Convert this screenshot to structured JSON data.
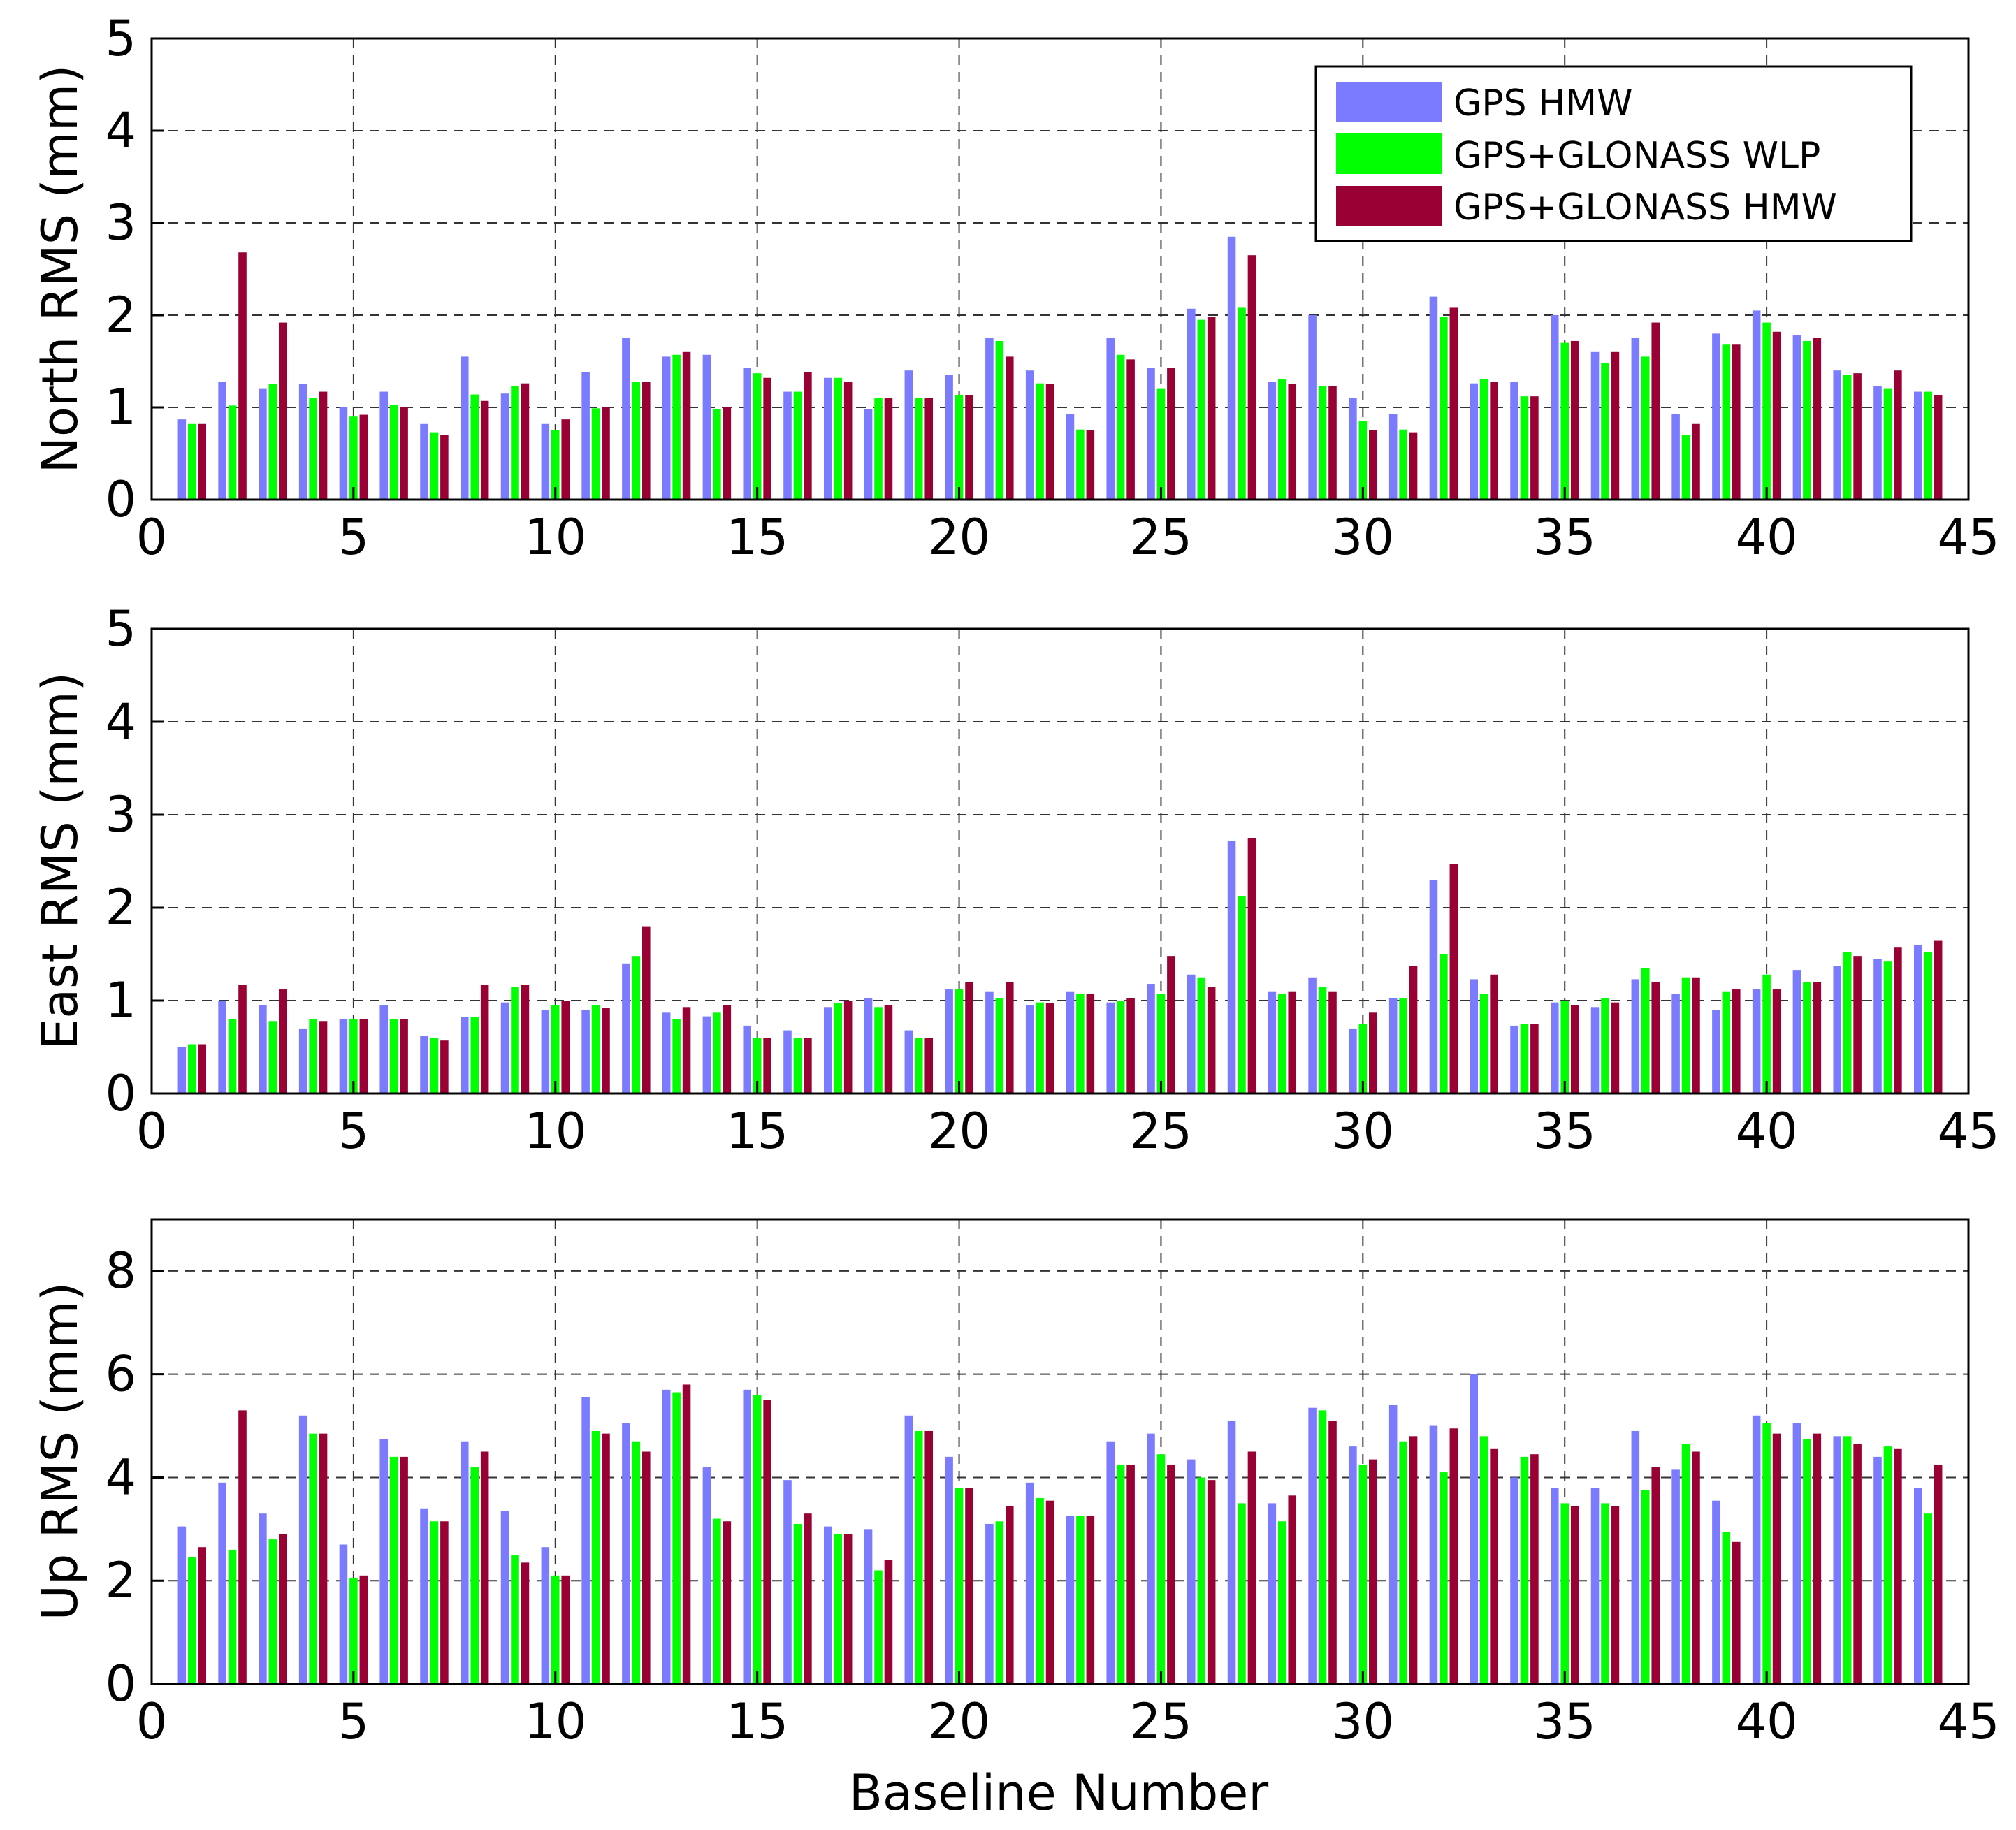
{
  "colors": {
    "gps_hmw": "#7b7bff",
    "gps_glonass_wlp": "#00ff00",
    "gps_glonass_hmw": "#990033",
    "grid": "#333333",
    "axes": "#000000"
  },
  "legend": {
    "items": [
      "GPS HMW",
      "GPS+GLONASS WLP",
      "GPS+GLONASS HMW"
    ]
  },
  "chart_data": [
    {
      "type": "bar",
      "ylabel": "North RMS (mm)",
      "xlabel": "",
      "xlim": [
        0,
        45
      ],
      "ylim": [
        0,
        5
      ],
      "xticks": [
        0,
        5,
        10,
        15,
        20,
        25,
        30,
        35,
        40,
        45
      ],
      "yticks": [
        0,
        1,
        2,
        3,
        4,
        5
      ],
      "grid": true,
      "legend": "top-right",
      "x": [
        1,
        2,
        3,
        4,
        5,
        6,
        7,
        8,
        9,
        10,
        11,
        12,
        13,
        14,
        15,
        16,
        17,
        18,
        19,
        20,
        21,
        22,
        23,
        24,
        25,
        26,
        27,
        28,
        29,
        30,
        31,
        32,
        33,
        34,
        35,
        36,
        37,
        38,
        39,
        40,
        41,
        42,
        43,
        44
      ],
      "series": [
        {
          "name": "GPS HMW",
          "values": [
            0.87,
            1.28,
            1.2,
            1.25,
            1.0,
            1.17,
            0.82,
            1.55,
            1.15,
            0.82,
            1.38,
            1.75,
            1.55,
            1.57,
            1.43,
            1.17,
            1.32,
            0.98,
            1.4,
            1.35,
            1.75,
            1.4,
            0.93,
            1.75,
            1.43,
            2.07,
            2.85,
            1.28,
            2.0,
            1.1,
            0.93,
            2.2,
            1.26,
            1.28,
            2.0,
            1.6,
            1.75,
            0.93,
            1.8,
            2.05,
            1.78,
            1.4,
            1.23,
            1.17
          ]
        },
        {
          "name": "GPS+GLONASS WLP",
          "values": [
            0.82,
            1.02,
            1.25,
            1.1,
            0.9,
            1.03,
            0.73,
            1.14,
            1.23,
            0.75,
            0.99,
            1.28,
            1.57,
            0.98,
            1.37,
            1.17,
            1.32,
            1.1,
            1.1,
            1.13,
            1.72,
            1.26,
            0.76,
            1.57,
            1.2,
            1.95,
            2.08,
            1.31,
            1.23,
            0.85,
            0.76,
            1.98,
            1.31,
            1.12,
            1.7,
            1.48,
            1.55,
            0.7,
            1.68,
            1.92,
            1.72,
            1.35,
            1.2,
            1.17
          ]
        },
        {
          "name": "GPS+GLONASS HMW",
          "values": [
            0.82,
            2.68,
            1.92,
            1.17,
            0.92,
            1.0,
            0.7,
            1.07,
            1.26,
            0.87,
            1.0,
            1.28,
            1.6,
            1.0,
            1.32,
            1.38,
            1.28,
            1.1,
            1.1,
            1.13,
            1.55,
            1.25,
            0.75,
            1.52,
            1.43,
            1.98,
            2.65,
            1.25,
            1.23,
            0.75,
            0.73,
            2.08,
            1.28,
            1.12,
            1.72,
            1.6,
            1.92,
            0.82,
            1.68,
            1.82,
            1.75,
            1.37,
            1.4,
            1.13
          ]
        }
      ]
    },
    {
      "type": "bar",
      "ylabel": "East RMS (mm)",
      "xlabel": "",
      "xlim": [
        0,
        45
      ],
      "ylim": [
        0,
        5
      ],
      "xticks": [
        0,
        5,
        10,
        15,
        20,
        25,
        30,
        35,
        40,
        45
      ],
      "yticks": [
        0,
        1,
        2,
        3,
        4,
        5
      ],
      "grid": true,
      "x": [
        1,
        2,
        3,
        4,
        5,
        6,
        7,
        8,
        9,
        10,
        11,
        12,
        13,
        14,
        15,
        16,
        17,
        18,
        19,
        20,
        21,
        22,
        23,
        24,
        25,
        26,
        27,
        28,
        29,
        30,
        31,
        32,
        33,
        34,
        35,
        36,
        37,
        38,
        39,
        40,
        41,
        42,
        43,
        44
      ],
      "series": [
        {
          "name": "GPS HMW",
          "values": [
            0.5,
            1.0,
            0.95,
            0.7,
            0.8,
            0.95,
            0.62,
            0.82,
            0.98,
            0.9,
            0.9,
            1.4,
            0.87,
            0.83,
            0.73,
            0.68,
            0.93,
            1.03,
            0.68,
            1.12,
            1.1,
            0.95,
            1.1,
            0.98,
            1.18,
            1.28,
            2.72,
            1.1,
            1.25,
            0.7,
            1.03,
            2.3,
            1.23,
            0.73,
            0.98,
            0.93,
            1.23,
            1.07,
            0.9,
            1.12,
            1.33,
            1.37,
            1.45,
            1.6
          ]
        },
        {
          "name": "GPS+GLONASS WLP",
          "values": [
            0.53,
            0.8,
            0.78,
            0.8,
            0.8,
            0.8,
            0.6,
            0.82,
            1.15,
            0.95,
            0.95,
            1.48,
            0.8,
            0.87,
            0.6,
            0.6,
            0.97,
            0.93,
            0.6,
            1.12,
            1.03,
            0.98,
            1.07,
            1.0,
            1.07,
            1.25,
            2.12,
            1.07,
            1.15,
            0.75,
            1.03,
            1.5,
            1.07,
            0.75,
            1.0,
            1.03,
            1.35,
            1.25,
            1.1,
            1.28,
            1.2,
            1.52,
            1.42,
            1.52
          ]
        },
        {
          "name": "GPS+GLONASS HMW",
          "values": [
            0.53,
            1.17,
            1.12,
            0.78,
            0.8,
            0.8,
            0.57,
            1.17,
            1.17,
            1.0,
            0.92,
            1.8,
            0.93,
            0.95,
            0.6,
            0.6,
            1.0,
            0.95,
            0.6,
            1.2,
            1.2,
            0.97,
            1.07,
            1.03,
            1.48,
            1.15,
            2.75,
            1.1,
            1.1,
            0.87,
            1.37,
            2.47,
            1.28,
            0.75,
            0.95,
            0.98,
            1.2,
            1.25,
            1.12,
            1.12,
            1.2,
            1.48,
            1.57,
            1.65
          ]
        }
      ]
    },
    {
      "type": "bar",
      "ylabel": "Up RMS (mm)",
      "xlabel": "Baseline Number",
      "xlim": [
        0,
        45
      ],
      "ylim": [
        0,
        9
      ],
      "xticks": [
        0,
        5,
        10,
        15,
        20,
        25,
        30,
        35,
        40,
        45
      ],
      "yticks": [
        0,
        2,
        4,
        6,
        8
      ],
      "grid": true,
      "x": [
        1,
        2,
        3,
        4,
        5,
        6,
        7,
        8,
        9,
        10,
        11,
        12,
        13,
        14,
        15,
        16,
        17,
        18,
        19,
        20,
        21,
        22,
        23,
        24,
        25,
        26,
        27,
        28,
        29,
        30,
        31,
        32,
        33,
        34,
        35,
        36,
        37,
        38,
        39,
        40,
        41,
        42,
        43,
        44
      ],
      "series": [
        {
          "name": "GPS HMW",
          "values": [
            3.05,
            3.9,
            3.3,
            5.2,
            2.7,
            4.75,
            3.4,
            4.7,
            3.35,
            2.65,
            5.55,
            5.05,
            5.7,
            4.2,
            5.7,
            3.95,
            3.05,
            3.0,
            5.2,
            4.4,
            3.1,
            3.9,
            3.25,
            4.7,
            4.85,
            4.35,
            5.1,
            3.5,
            5.35,
            4.6,
            5.4,
            5.0,
            6.0,
            4.0,
            3.8,
            3.8,
            4.9,
            4.15,
            3.55,
            5.2,
            5.05,
            4.8,
            4.4,
            3.8
          ]
        },
        {
          "name": "GPS+GLONASS WLP",
          "values": [
            2.45,
            2.6,
            2.8,
            4.85,
            2.05,
            4.4,
            3.15,
            4.2,
            2.5,
            2.1,
            4.9,
            4.7,
            5.65,
            3.2,
            5.6,
            3.1,
            2.9,
            2.2,
            4.9,
            3.8,
            3.15,
            3.6,
            3.25,
            4.25,
            4.45,
            4.0,
            3.5,
            3.15,
            5.3,
            4.25,
            4.7,
            4.1,
            4.8,
            4.4,
            3.5,
            3.5,
            3.75,
            4.65,
            2.95,
            5.05,
            4.75,
            4.8,
            4.6,
            3.3
          ]
        },
        {
          "name": "GPS+GLONASS HMW",
          "values": [
            2.65,
            5.3,
            2.9,
            4.85,
            2.1,
            4.4,
            3.15,
            4.5,
            2.35,
            2.1,
            4.85,
            4.5,
            5.8,
            3.15,
            5.5,
            3.3,
            2.9,
            2.4,
            4.9,
            3.8,
            3.45,
            3.55,
            3.25,
            4.25,
            4.25,
            3.95,
            4.5,
            3.65,
            5.1,
            4.35,
            4.8,
            4.95,
            4.55,
            4.45,
            3.45,
            3.45,
            4.2,
            4.5,
            2.75,
            4.85,
            4.85,
            4.65,
            4.55,
            4.25
          ]
        }
      ]
    }
  ]
}
